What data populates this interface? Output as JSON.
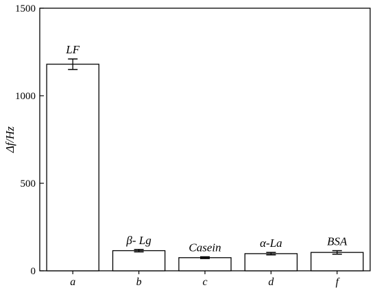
{
  "chart_data": {
    "type": "bar",
    "categories": [
      "a",
      "b",
      "c",
      "d",
      "f"
    ],
    "bar_labels": [
      "LF",
      "β- Lg",
      "Casein",
      "α-La",
      "BSA"
    ],
    "values": [
      1180,
      115,
      75,
      98,
      105
    ],
    "errors": [
      30,
      7,
      5,
      7,
      10
    ],
    "ylabel": "Δf/Hz",
    "xlabel": "",
    "ylim": [
      0,
      1500
    ],
    "yticks": [
      0,
      500,
      1000,
      1500
    ],
    "grid": false,
    "bar_fill": "#ffffff",
    "bar_stroke": "#000000"
  }
}
